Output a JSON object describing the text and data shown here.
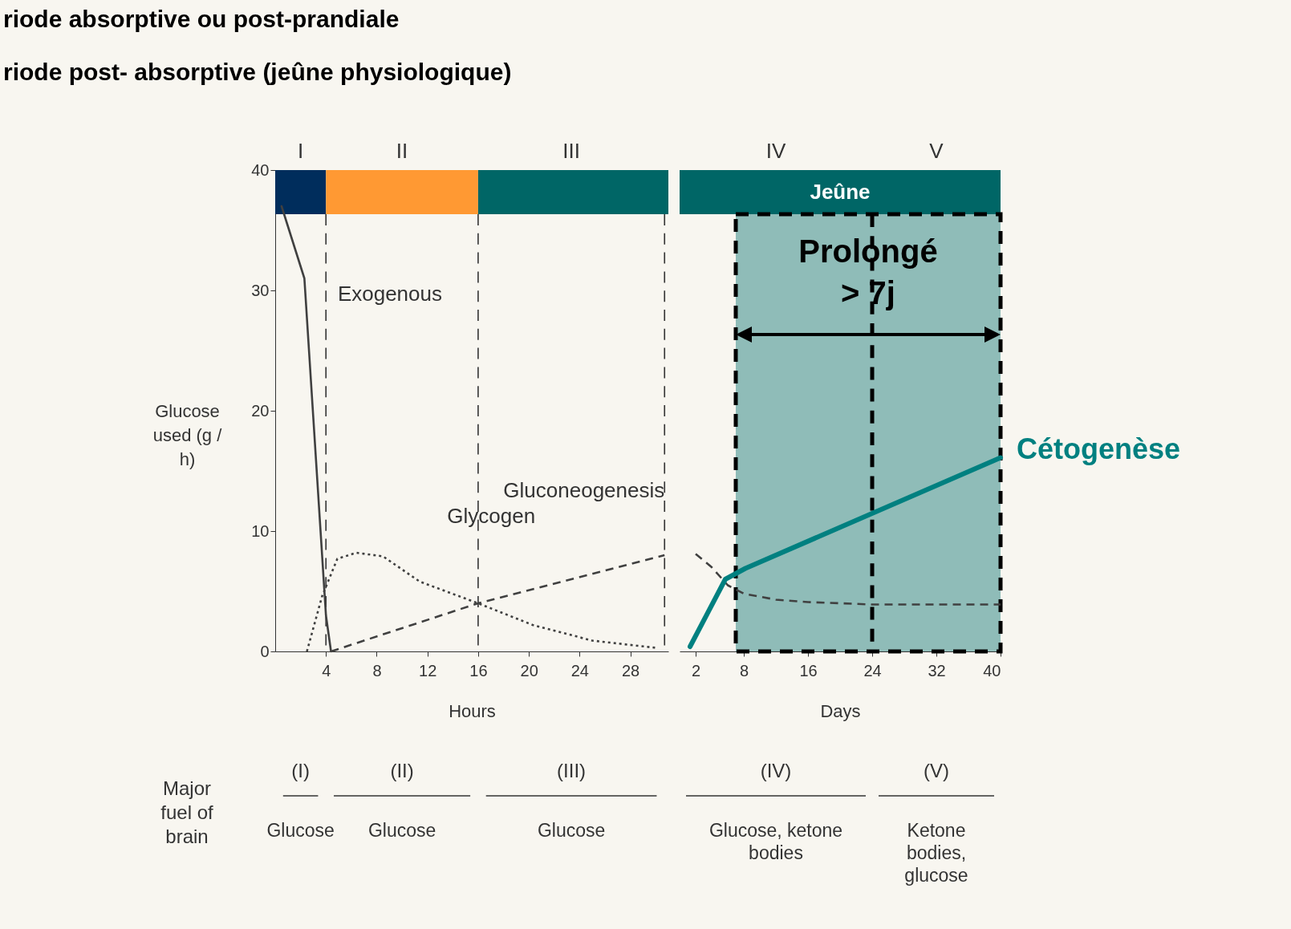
{
  "chart_data": [
    {
      "type": "line",
      "title": "riode absorptive ou post-prandiale",
      "subtitle": "riode post- absorptive (jeûne physiologique)",
      "xlabel": "Hours",
      "ylabel": "Glucose used (g / h)",
      "xlim": [
        0,
        31
      ],
      "xticks": [
        4,
        8,
        12,
        16,
        20,
        24,
        28
      ],
      "ylim": [
        0,
        40
      ],
      "yticks": [
        0,
        10,
        20,
        30,
        40
      ],
      "series": [
        {
          "name": "Exogenous",
          "color": "#404040",
          "line_style": "solid",
          "x": [
            0.5,
            2.3,
            4.0,
            4.4
          ],
          "values": [
            37,
            31,
            3,
            0
          ]
        },
        {
          "name": "Glycogen",
          "color": "#404040",
          "line_style": "dotted",
          "x": [
            2.5,
            3.7,
            4.9,
            6.4,
            8.5,
            11.4,
            16,
            20.3,
            25,
            30
          ],
          "values": [
            0,
            4.6,
            7.7,
            8.2,
            7.9,
            5.8,
            4,
            2.2,
            0.9,
            0.3
          ]
        },
        {
          "name": "Gluconeogenesis",
          "color": "#404040",
          "line_style": "dashed",
          "x": [
            4.4,
            16,
            30.7
          ],
          "values": [
            0,
            4,
            8
          ]
        }
      ],
      "bands": [
        {
          "axis": "x",
          "from": 0,
          "to": 4,
          "color": "#002d5c"
        },
        {
          "axis": "x",
          "from": 4,
          "to": 16,
          "color": "#ff9933"
        },
        {
          "axis": "x",
          "from": 16,
          "to": 31,
          "color": "#006666"
        }
      ],
      "ref_lines": [
        {
          "axis": "x",
          "value": 4,
          "line_style": "dashed"
        },
        {
          "axis": "x",
          "value": 16,
          "line_style": "dashed"
        },
        {
          "axis": "x",
          "value": 30.7,
          "line_style": "dashed"
        }
      ],
      "annotations": [
        "I",
        "II",
        "III",
        "(I)",
        "(II)",
        "(III)",
        "Glucose",
        "Glucose",
        "Glucose",
        "Major fuel of brain"
      ]
    },
    {
      "type": "line",
      "xlabel": "Days",
      "xlim": [
        0,
        40
      ],
      "xticks": [
        2,
        8,
        16,
        24,
        32,
        40
      ],
      "ylim": [
        0,
        40
      ],
      "yticks": [
        0,
        10,
        20,
        30,
        40
      ],
      "tick_labels": "x",
      "series": [
        {
          "color": "#404040",
          "line_style": "dashed",
          "x": [
            2,
            4,
            6,
            8,
            12,
            16,
            24,
            40
          ],
          "values": [
            8.1,
            7,
            5.5,
            4.8,
            4.3,
            4.1,
            3.9,
            3.9
          ]
        },
        {
          "name": "Cétogenèse",
          "color": "#008080",
          "line_style": "solid",
          "x": [
            1.3,
            5.7,
            8.2,
            40
          ],
          "values": [
            0.4,
            6,
            6.9,
            16.1
          ]
        }
      ],
      "bands": [
        {
          "axis": "x",
          "from": 0,
          "to": 40,
          "color": "#006666",
          "label": "Jeûne"
        },
        {
          "axis": "x",
          "from": 7,
          "to": 40,
          "color": "#8fbcb8",
          "label": "Prolongé\n> 7j"
        }
      ],
      "ref_lines": [
        {
          "axis": "x",
          "value": 24,
          "line_style": "dashed",
          "color": "#000000"
        }
      ],
      "annotations": [
        "IV",
        "V",
        "(IV)",
        "(V)",
        "Glucose, ketone bodies",
        "Ketone bodies, glucose"
      ]
    }
  ]
}
